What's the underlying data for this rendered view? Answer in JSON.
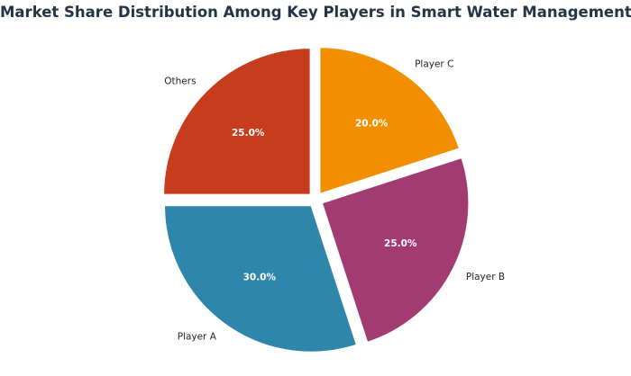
{
  "chart_data": {
    "type": "pie",
    "title": "Market Share Distribution Among Key Players in Smart Water Management",
    "categories": [
      "Others",
      "Player A",
      "Player B",
      "Player C"
    ],
    "values": [
      25.0,
      30.0,
      25.0,
      20.0
    ],
    "percent_labels": [
      "25.0%",
      "30.0%",
      "25.0%",
      "20.0%"
    ],
    "colors": [
      "#C63C1C",
      "#2E86AB",
      "#A23B72",
      "#F18F01"
    ],
    "exploded": true,
    "start_angle_deg": 90,
    "direction": "counterclockwise"
  }
}
